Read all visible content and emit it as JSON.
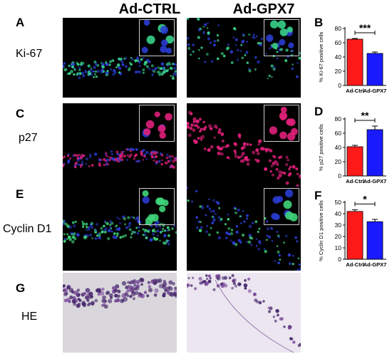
{
  "columns": {
    "left": "Ad-CTRL",
    "right": "Ad-GPX7"
  },
  "rows": [
    {
      "letter": "A",
      "label": "Ki-67"
    },
    {
      "letter": "C",
      "label": "p27"
    },
    {
      "letter": "E",
      "label": "Cyclin D1"
    },
    {
      "letter": "G",
      "label": "HE"
    }
  ],
  "colors": {
    "ctrl_bar": "#ff1a1a",
    "gpx7_bar": "#1a1aff",
    "ki67_stain": "#39d28a",
    "p27_stain": "#e0207a",
    "cyclin_stain": "#3fd47a",
    "nuclei": "#2a3cd0",
    "he_cells": "#4a2a6e"
  },
  "chart_data": [
    {
      "letter": "B",
      "type": "bar",
      "categories": [
        "Ad-Ctrl",
        "Ad-GPX7"
      ],
      "values": [
        65,
        45
      ],
      "errors": [
        1,
        2
      ],
      "ylabel": "% Ki-67 positive cells",
      "ylim": [
        0,
        80
      ],
      "yticks": [
        "0",
        "20",
        "40",
        "60",
        "80"
      ],
      "significance": "***"
    },
    {
      "letter": "D",
      "type": "bar",
      "categories": [
        "Ad-Ctrl",
        "Ad-GPX7"
      ],
      "values": [
        41,
        65
      ],
      "errors": [
        2,
        5
      ],
      "ylabel": "% p27 positive cells",
      "ylim": [
        0,
        80
      ],
      "yticks": [
        "0",
        "20",
        "40",
        "60",
        "80"
      ],
      "significance": "**"
    },
    {
      "letter": "F",
      "type": "bar",
      "categories": [
        "Ad-Ctrl",
        "Ad-GPX7"
      ],
      "values": [
        42,
        33
      ],
      "errors": [
        1.5,
        2
      ],
      "ylabel": "% Cyclin D1 positive cells",
      "ylim": [
        0,
        50
      ],
      "yticks": [
        "0",
        "10",
        "20",
        "30",
        "40",
        "50"
      ],
      "significance": "*"
    }
  ]
}
